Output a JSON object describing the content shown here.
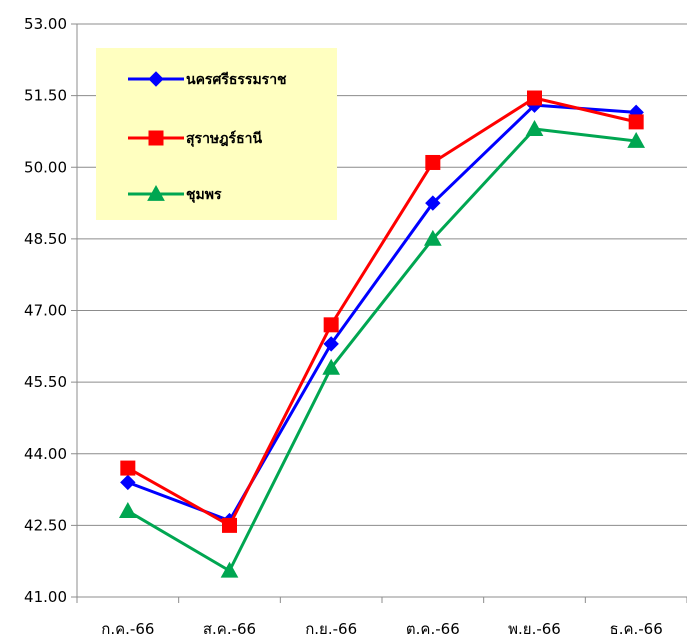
{
  "chart_data": {
    "type": "line",
    "categories": [
      "ก.ค.-66",
      "ส.ค.-66",
      "ก.ย.-66",
      "ต.ค.-66",
      "พ.ย.-66",
      "ธ.ค.-66"
    ],
    "series": [
      {
        "name": "นครศรีธรรมราช",
        "color": "#0000ff",
        "marker": "diamond",
        "values": [
          43.4,
          42.6,
          46.3,
          49.25,
          51.3,
          51.15
        ]
      },
      {
        "name": "สุราษฎร์ธานี",
        "color": "#ff0000",
        "marker": "square",
        "values": [
          43.7,
          42.5,
          46.7,
          50.1,
          51.45,
          50.95
        ]
      },
      {
        "name": "ชุมพร",
        "color": "#00a651",
        "marker": "triangle",
        "values": [
          42.8,
          41.55,
          45.8,
          48.5,
          50.8,
          50.55
        ]
      }
    ],
    "yticks": [
      "41.00",
      "42.50",
      "44.00",
      "45.50",
      "47.00",
      "48.50",
      "50.00",
      "51.50",
      "53.00"
    ],
    "ylim": [
      41,
      53
    ],
    "grid": true,
    "legend_position": "top-left",
    "legend_background": "#ffffc0",
    "title": "",
    "xlabel": "",
    "ylabel": ""
  }
}
